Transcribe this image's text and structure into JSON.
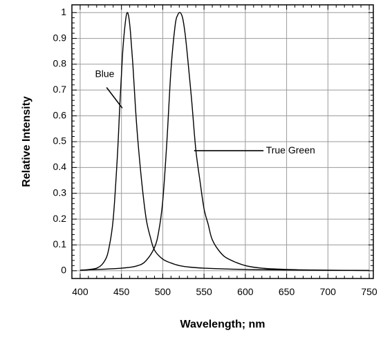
{
  "chart_data": {
    "type": "line",
    "title": "",
    "xlabel": "Wavelength; nm",
    "ylabel": "Relative Intensity",
    "xlim": [
      390,
      755
    ],
    "ylim": [
      -0.03,
      1.03
    ],
    "x_ticks": [
      400,
      450,
      500,
      550,
      600,
      650,
      700,
      750
    ],
    "y_ticks": [
      0,
      0.1,
      0.2,
      0.3,
      0.4,
      0.5,
      0.6,
      0.7,
      0.8,
      0.9,
      1
    ],
    "grid": true,
    "series": [
      {
        "name": "Blue",
        "x": [
          400,
          420,
          430,
          435,
          440,
          445,
          448,
          450,
          452,
          455,
          457,
          459,
          461,
          464,
          467,
          470,
          475,
          480,
          485,
          490,
          500,
          510,
          520,
          530,
          550,
          600,
          650,
          700,
          750
        ],
        "y": [
          0.002,
          0.01,
          0.04,
          0.09,
          0.2,
          0.44,
          0.64,
          0.76,
          0.87,
          0.97,
          1.0,
          0.98,
          0.92,
          0.79,
          0.63,
          0.5,
          0.33,
          0.2,
          0.13,
          0.08,
          0.045,
          0.03,
          0.02,
          0.015,
          0.01,
          0.005,
          0.003,
          0.002,
          0.001
        ]
      },
      {
        "name": "True Green",
        "x": [
          400,
          450,
          470,
          480,
          490,
          495,
          500,
          505,
          510,
          515,
          518,
          521,
          524,
          527,
          530,
          535,
          540,
          545,
          550,
          555,
          560,
          570,
          580,
          600,
          620,
          650,
          700,
          750
        ],
        "y": [
          0.002,
          0.01,
          0.02,
          0.04,
          0.09,
          0.15,
          0.27,
          0.5,
          0.78,
          0.95,
          0.99,
          1.0,
          0.98,
          0.92,
          0.83,
          0.66,
          0.47,
          0.35,
          0.24,
          0.18,
          0.12,
          0.07,
          0.045,
          0.02,
          0.01,
          0.005,
          0.002,
          0.001
        ]
      }
    ],
    "annotations": [
      {
        "text": "Blue",
        "label_x": 418,
        "label_y": 0.76,
        "line_from": [
          432,
          0.71
        ],
        "line_to": [
          451,
          0.63
        ]
      },
      {
        "text": "True Green",
        "label_x": 625,
        "label_y": 0.465,
        "line_from": [
          538,
          0.465
        ],
        "line_to": [
          622,
          0.465
        ]
      }
    ]
  }
}
